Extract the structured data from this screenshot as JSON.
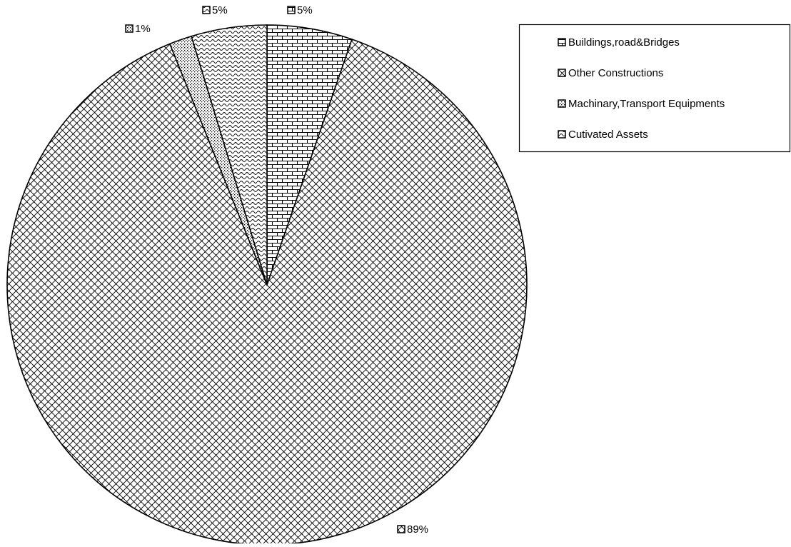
{
  "chart_data": {
    "type": "pie",
    "title": "",
    "legend_position": "top-right",
    "start_angle": "12 o'clock",
    "direction": "clockwise",
    "slices": [
      {
        "name": "Buildings,road&Bridges",
        "value": 5.3,
        "label": "5%",
        "pattern": "brick"
      },
      {
        "name": "Other Constructions",
        "value": 88.6,
        "label": "89%",
        "pattern": "diagonal-crosshatch"
      },
      {
        "name": "Machinary,Transport Equipments",
        "value": 1.4,
        "label": "1%",
        "pattern": "dots"
      },
      {
        "name": "Cutivated Assets",
        "value": 4.7,
        "label": "5%",
        "pattern": "waves"
      }
    ],
    "colors": {
      "stroke": "#000000",
      "background": "#ffffff"
    }
  }
}
